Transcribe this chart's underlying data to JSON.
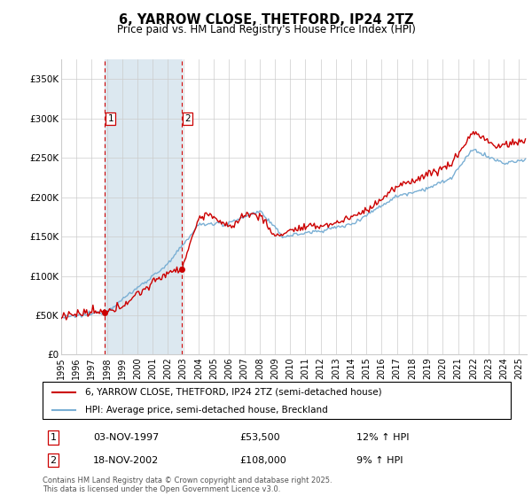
{
  "title": "6, YARROW CLOSE, THETFORD, IP24 2TZ",
  "subtitle": "Price paid vs. HM Land Registry's House Price Index (HPI)",
  "ylabel_ticks": [
    "£0",
    "£50K",
    "£100K",
    "£150K",
    "£200K",
    "£250K",
    "£300K",
    "£350K"
  ],
  "ytick_values": [
    0,
    50000,
    100000,
    150000,
    200000,
    250000,
    300000,
    350000
  ],
  "ylim": [
    0,
    375000
  ],
  "xlim_start": 1995.0,
  "xlim_end": 2025.5,
  "legend_line1": "6, YARROW CLOSE, THETFORD, IP24 2TZ (semi-detached house)",
  "legend_line2": "HPI: Average price, semi-detached house, Breckland",
  "purchase1_date": "03-NOV-1997",
  "purchase1_price": "£53,500",
  "purchase1_hpi": "12% ↑ HPI",
  "purchase1_year": 1997.84,
  "purchase2_date": "18-NOV-2002",
  "purchase2_price": "£108,000",
  "purchase2_hpi": "9% ↑ HPI",
  "purchase2_year": 2002.88,
  "p1_price_val": 53500,
  "p2_price_val": 108000,
  "line_color_red": "#cc0000",
  "line_color_blue": "#7aafd4",
  "shading_color": "#dce8f0",
  "dashed_color": "#cc0000",
  "grid_color": "#cccccc",
  "bg_color": "#ffffff",
  "footer": "Contains HM Land Registry data © Crown copyright and database right 2025.\nThis data is licensed under the Open Government Licence v3.0."
}
